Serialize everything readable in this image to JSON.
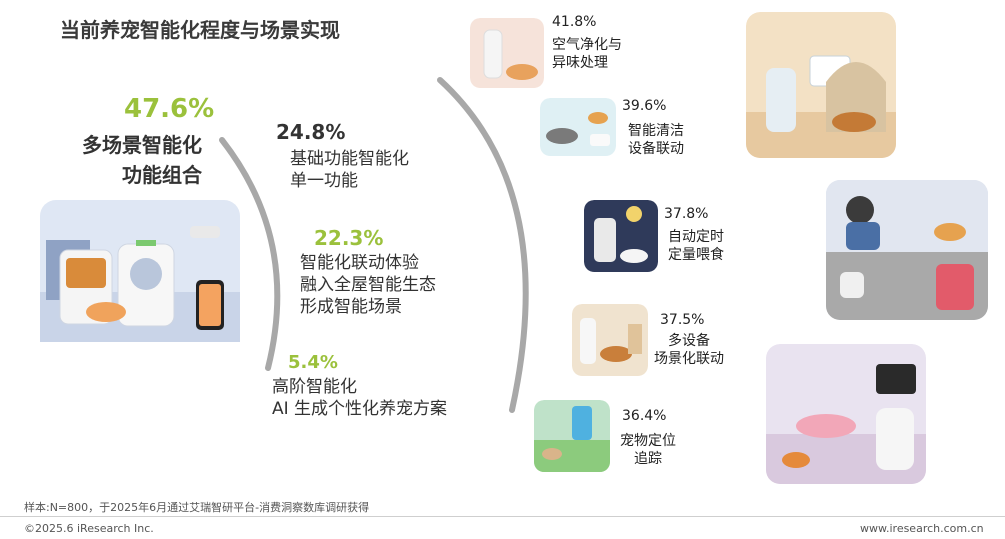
{
  "title": "当前养宠智能化程度与场景实现",
  "chart_data": {
    "type": "table",
    "levels": [
      {
        "value": "47.6%",
        "lines": [
          "多场景智能化",
          "功能组合"
        ]
      },
      {
        "value": "24.8%",
        "lines": [
          "基础功能智能化",
          "单一功能"
        ]
      },
      {
        "value": "22.3%",
        "lines": [
          "智能化联动体验",
          "融入全屋智能生态",
          "形成智能场景"
        ]
      },
      {
        "value": "5.4%",
        "lines": [
          "高阶智能化",
          "AI 生成个性化养宠方案"
        ]
      }
    ],
    "scenes": [
      {
        "value": "41.8%",
        "lines": [
          "空气净化与",
          "异味处理"
        ]
      },
      {
        "value": "39.6%",
        "lines": [
          "智能清洁",
          "设备联动"
        ]
      },
      {
        "value": "37.8%",
        "lines": [
          "自动定时",
          "定量喂食"
        ]
      },
      {
        "value": "37.5%",
        "lines": [
          "多设备",
          "场景化联动"
        ]
      },
      {
        "value": "36.4%",
        "lines": [
          "宠物定位",
          "追踪"
        ]
      }
    ]
  },
  "footer": {
    "note": "样本:N=800，于2025年6月通过艾瑞智研平台-消费洞察数库调研获得",
    "copyright": "©2025.6 iResearch Inc.",
    "website": "www.iresearch.com.cn"
  },
  "colors": {
    "accent_green": "#9bc13c",
    "arc_gray": "#a8a8a8",
    "text": "#333333"
  }
}
